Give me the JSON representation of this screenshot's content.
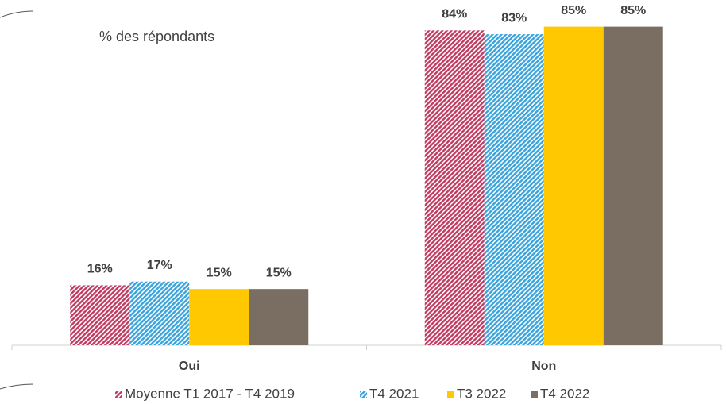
{
  "chart_data": {
    "type": "bar",
    "subtitle": "% des répondants",
    "categories": [
      "Oui",
      "Non"
    ],
    "series": [
      {
        "name": "Moyenne T1 2017 - T4 2019",
        "color": "#c03a62",
        "hatch": true,
        "values": [
          16,
          84
        ],
        "value_labels": [
          "16%",
          "84%"
        ]
      },
      {
        "name": "T4 2021",
        "color": "#39a3dc",
        "hatch": true,
        "values": [
          17,
          83
        ],
        "value_labels": [
          "17%",
          "83%"
        ]
      },
      {
        "name": "T3 2022",
        "color": "#ffc800",
        "hatch": false,
        "values": [
          15,
          85
        ],
        "value_labels": [
          "15%",
          "85%"
        ]
      },
      {
        "name": "T4 2022",
        "color": "#7a6e63",
        "hatch": false,
        "values": [
          15,
          85
        ],
        "value_labels": [
          "15%",
          "85%"
        ]
      }
    ],
    "ylim": [
      0,
      90
    ],
    "legend": "bottom"
  }
}
